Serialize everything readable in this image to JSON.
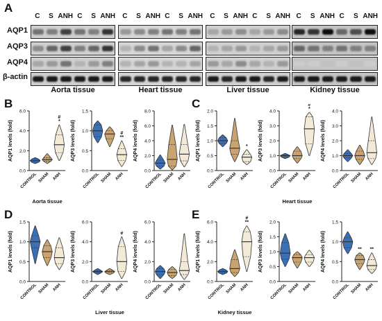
{
  "figure_letter": "A",
  "western_blot": {
    "lane_labels": [
      "C",
      "S",
      "ANH",
      "C",
      "S",
      "ANH"
    ],
    "row_labels": [
      "AQP1",
      "AQP3",
      "AQP4",
      "β-actin"
    ],
    "tissues": [
      "Aorta tissue",
      "Heart tissue",
      "Liver tissue",
      "Kidney tissue"
    ]
  },
  "colors": {
    "control": "#3b6fb6",
    "sham": "#c9a470",
    "anh": "#f2ead7",
    "outline": "#222222"
  },
  "chart_data": [
    {
      "panel": "B",
      "type": "violin",
      "ylabel": "AQP1 levels (fold)",
      "ylim": [
        0,
        6
      ],
      "yticks": [
        "0.0",
        "2.0",
        "4.0",
        "6.0"
      ],
      "categories": [
        "CONTROL",
        "SHAM",
        "ANH"
      ],
      "group_caption": "Aorta tissue",
      "violins": [
        {
          "min": 0.7,
          "q1": 0.85,
          "median": 1.0,
          "q3": 1.15,
          "max": 1.3
        },
        {
          "min": 0.7,
          "q1": 0.95,
          "median": 1.1,
          "q3": 1.3,
          "max": 1.7
        },
        {
          "min": 1.0,
          "q1": 1.8,
          "median": 2.6,
          "q3": 3.6,
          "max": 4.6
        }
      ],
      "annotations": [
        "",
        "",
        "#\n*"
      ]
    },
    {
      "panel": "B",
      "type": "violin",
      "ylabel": "AQP3 levels (fold)",
      "ylim": [
        0,
        1.5
      ],
      "yticks": [
        "0.0",
        "0.5",
        "1.0",
        "1.5"
      ],
      "categories": [
        "CONTROL",
        "SHAM",
        "ANH"
      ],
      "group_caption": "",
      "violins": [
        {
          "min": 0.7,
          "q1": 0.85,
          "median": 1.0,
          "q3": 1.15,
          "max": 1.25
        },
        {
          "min": 0.6,
          "q1": 0.8,
          "median": 0.92,
          "q3": 1.0,
          "max": 1.1
        },
        {
          "min": 0.1,
          "q1": 0.25,
          "median": 0.4,
          "q3": 0.55,
          "max": 0.75
        }
      ],
      "annotations": [
        "",
        "",
        "#\n**"
      ]
    },
    {
      "panel": "B",
      "type": "violin",
      "ylabel": "AQP4 levels (fold)",
      "ylim": [
        0,
        8
      ],
      "yticks": [
        "0.0",
        "2.0",
        "4.0",
        "6.0",
        "8.0"
      ],
      "categories": [
        "CONTROL",
        "SHAM",
        "ANH"
      ],
      "group_caption": "",
      "violins": [
        {
          "min": 0.2,
          "q1": 0.6,
          "median": 1.0,
          "q3": 1.4,
          "max": 2.1
        },
        {
          "min": 0.1,
          "q1": 0.6,
          "median": 1.5,
          "q3": 3.5,
          "max": 6.1
        },
        {
          "min": 0.5,
          "q1": 1.3,
          "median": 2.2,
          "q3": 3.5,
          "max": 6.2
        }
      ],
      "annotations": [
        "",
        "",
        ""
      ]
    },
    {
      "panel": "C",
      "type": "violin",
      "ylabel": "AQP1 levels (fold)",
      "ylim": [
        0,
        2
      ],
      "yticks": [
        "0.0",
        "0.5",
        "1.0",
        "1.5",
        "2.0"
      ],
      "categories": [
        "CONTROL",
        "SHAM",
        "ANH"
      ],
      "group_caption": "",
      "violins": [
        {
          "min": 0.8,
          "q1": 0.92,
          "median": 1.0,
          "q3": 1.1,
          "max": 1.2
        },
        {
          "min": 0.3,
          "q1": 0.55,
          "median": 0.75,
          "q3": 1.0,
          "max": 1.75
        },
        {
          "min": 0.2,
          "q1": 0.3,
          "median": 0.45,
          "q3": 0.55,
          "max": 0.7
        }
      ],
      "annotations": [
        "",
        "",
        "*"
      ]
    },
    {
      "panel": "C",
      "type": "violin",
      "ylabel": "AQP3 levels (fold)",
      "ylim": [
        0,
        4
      ],
      "yticks": [
        "0.0",
        "1.0",
        "2.0",
        "3.0",
        "4.0"
      ],
      "categories": [
        "CONTROL",
        "SHAM",
        "ANH"
      ],
      "group_caption": "Heart tissue",
      "violins": [
        {
          "min": 0.8,
          "q1": 0.9,
          "median": 1.0,
          "q3": 1.05,
          "max": 1.15
        },
        {
          "min": 0.5,
          "q1": 0.8,
          "median": 1.0,
          "q3": 1.3,
          "max": 1.6
        },
        {
          "min": 1.0,
          "q1": 1.8,
          "median": 2.8,
          "q3": 3.6,
          "max": 3.9
        }
      ],
      "annotations": [
        "",
        "",
        "#\n*"
      ]
    },
    {
      "panel": "C",
      "type": "violin",
      "ylabel": "AQP4 levels (fold)",
      "ylim": [
        0,
        4
      ],
      "yticks": [
        "0.0",
        "1.0",
        "2.0",
        "3.0",
        "4.0"
      ],
      "categories": [
        "CONTROL",
        "SHAM",
        "ANH"
      ],
      "group_caption": "",
      "violins": [
        {
          "min": 0.6,
          "q1": 0.85,
          "median": 1.0,
          "q3": 1.15,
          "max": 1.4
        },
        {
          "min": 0.4,
          "q1": 0.75,
          "median": 1.0,
          "q3": 1.3,
          "max": 1.7
        },
        {
          "min": 0.4,
          "q1": 0.8,
          "median": 1.2,
          "q3": 2.0,
          "max": 3.6
        }
      ],
      "annotations": [
        "",
        "",
        ""
      ]
    },
    {
      "panel": "D",
      "type": "violin",
      "ylabel": "AQP1 levels (fold)",
      "ylim": [
        0,
        1.5
      ],
      "yticks": [
        "0.0",
        "0.5",
        "1.0",
        "1.5"
      ],
      "categories": [
        "CONTROL",
        "SHAM",
        "ANH"
      ],
      "group_caption": "",
      "violins": [
        {
          "min": 0.45,
          "q1": 0.85,
          "median": 1.0,
          "q3": 1.15,
          "max": 1.4
        },
        {
          "min": 0.4,
          "q1": 0.6,
          "median": 0.75,
          "q3": 0.9,
          "max": 1.05
        },
        {
          "min": 0.3,
          "q1": 0.45,
          "median": 0.6,
          "q3": 0.85,
          "max": 1.1
        }
      ],
      "annotations": [
        "",
        "",
        ""
      ]
    },
    {
      "panel": "D",
      "type": "violin",
      "ylabel": "AQP3 levels (fold)",
      "ylim": [
        0,
        6
      ],
      "yticks": [
        "0.0",
        "2.0",
        "4.0",
        "6.0"
      ],
      "categories": [
        "CONTROL",
        "SHAM",
        "ANH"
      ],
      "group_caption": "Liver tissue",
      "violins": [
        {
          "min": 0.7,
          "q1": 0.9,
          "median": 1.0,
          "q3": 1.1,
          "max": 1.3
        },
        {
          "min": 0.7,
          "q1": 0.85,
          "median": 1.0,
          "q3": 1.1,
          "max": 1.3
        },
        {
          "min": 0.3,
          "q1": 1.0,
          "median": 2.0,
          "q3": 3.5,
          "max": 4.5
        }
      ],
      "annotations": [
        "",
        "",
        "#"
      ]
    },
    {
      "panel": "D",
      "type": "violin",
      "ylabel": "AQP4 levels (fold)",
      "ylim": [
        0,
        6
      ],
      "yticks": [
        "0.0",
        "2.0",
        "4.0",
        "6.0"
      ],
      "categories": [
        "CONTROL",
        "SHAM",
        "ANH"
      ],
      "group_caption": "",
      "violins": [
        {
          "min": 0.3,
          "q1": 0.7,
          "median": 1.0,
          "q3": 1.3,
          "max": 1.6
        },
        {
          "min": 0.3,
          "q1": 0.6,
          "median": 0.9,
          "q3": 1.2,
          "max": 1.5
        },
        {
          "min": 0.2,
          "q1": 0.7,
          "median": 1.1,
          "q3": 2.0,
          "max": 4.8
        }
      ],
      "annotations": [
        "",
        "",
        ""
      ]
    },
    {
      "panel": "E",
      "type": "violin",
      "ylabel": "AQP1 levels (fold)",
      "ylim": [
        0,
        6
      ],
      "yticks": [
        "0.0",
        "2.0",
        "4.0",
        "6.0"
      ],
      "categories": [
        "CONTROL",
        "SHAM",
        "ANH"
      ],
      "group_caption": "Kidney tissue",
      "violins": [
        {
          "min": 0.7,
          "q1": 0.85,
          "median": 1.0,
          "q3": 1.15,
          "max": 1.3
        },
        {
          "min": 0.5,
          "q1": 0.9,
          "median": 1.3,
          "q3": 2.2,
          "max": 3.2
        },
        {
          "min": 1.0,
          "q1": 2.5,
          "median": 4.0,
          "q3": 5.0,
          "max": 5.6
        }
      ],
      "annotations": [
        "",
        "",
        "#\n**"
      ]
    },
    {
      "panel": "E",
      "type": "violin",
      "ylabel": "AQP3 levels (fold)",
      "ylim": [
        0,
        2
      ],
      "yticks": [
        "0.0",
        "0.5",
        "1.0",
        "1.5",
        "2.0"
      ],
      "categories": [
        "CONTROL",
        "SHAM",
        "ANH"
      ],
      "group_caption": "",
      "violins": [
        {
          "min": 0.5,
          "q1": 0.75,
          "median": 0.95,
          "q3": 1.3,
          "max": 1.6
        },
        {
          "min": 0.45,
          "q1": 0.65,
          "median": 0.8,
          "q3": 0.9,
          "max": 1.0
        },
        {
          "min": 0.5,
          "q1": 0.65,
          "median": 0.8,
          "q3": 0.9,
          "max": 1.05
        }
      ],
      "annotations": [
        "",
        "",
        ""
      ]
    },
    {
      "panel": "E",
      "type": "violin",
      "ylabel": "AQP4 levels (fold)",
      "ylim": [
        0,
        1.5
      ],
      "yticks": [
        "0.0",
        "0.5",
        "1.0",
        "1.5"
      ],
      "categories": [
        "CONTROL",
        "SHAM",
        "ANH"
      ],
      "group_caption": "",
      "violins": [
        {
          "min": 0.7,
          "q1": 0.85,
          "median": 1.0,
          "q3": 1.1,
          "max": 1.25
        },
        {
          "min": 0.3,
          "q1": 0.45,
          "median": 0.55,
          "q3": 0.65,
          "max": 0.72
        },
        {
          "min": 0.2,
          "q1": 0.3,
          "median": 0.4,
          "q3": 0.55,
          "max": 0.72
        }
      ],
      "annotations": [
        "",
        "**",
        "**"
      ]
    }
  ],
  "panel_letters": [
    "B",
    "C",
    "D",
    "E"
  ]
}
